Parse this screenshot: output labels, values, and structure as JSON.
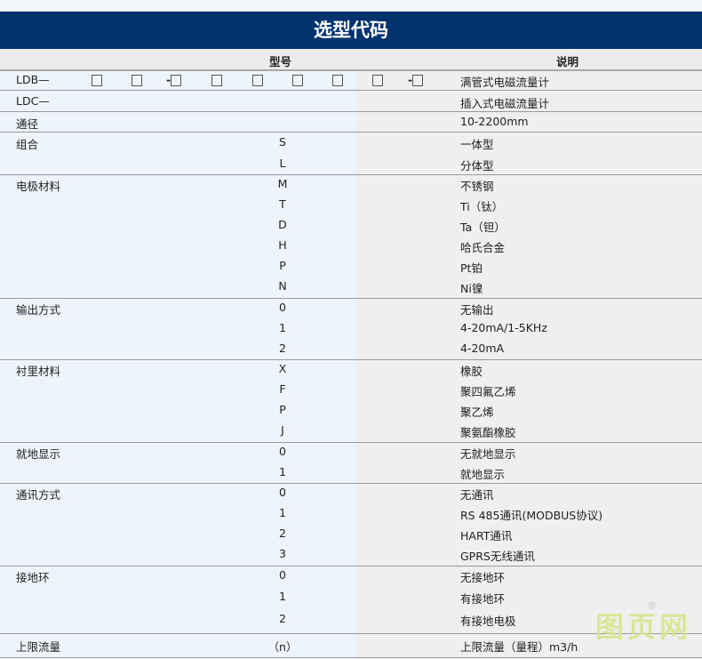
{
  "title": "选型代码",
  "header": {
    "model": "型号",
    "desc": "说明"
  },
  "ldb": {
    "label": "LDB—",
    "desc": "满管式电磁流量计"
  },
  "ldc": {
    "label": "LDC—",
    "desc": "插入式电磁流量计"
  },
  "diameter": {
    "label": "通径",
    "desc": "10-2200mm"
  },
  "groups": [
    {
      "label": "组合",
      "rows": [
        {
          "code": "S",
          "desc": "一体型"
        },
        {
          "code": "L",
          "desc": "分体型"
        }
      ]
    },
    {
      "label": "电极材料",
      "rows": [
        {
          "code": "M",
          "desc": "不锈钢"
        },
        {
          "code": "T",
          "desc": "Ti（钛）"
        },
        {
          "code": "D",
          "desc": "Ta（钽）"
        },
        {
          "code": "H",
          "desc": "哈氏合金"
        },
        {
          "code": "P",
          "desc": "Pt铂"
        },
        {
          "code": "N",
          "desc": "Ni镍"
        }
      ]
    },
    {
      "label": "输出方式",
      "rows": [
        {
          "code": "0",
          "desc": "无输出"
        },
        {
          "code": "1",
          "desc": "4-20mA/1-5KHz"
        },
        {
          "code": "2",
          "desc": "4-20mA"
        }
      ]
    },
    {
      "label": "衬里材料",
      "rows": [
        {
          "code": "X",
          "desc": "橡胶"
        },
        {
          "code": "F",
          "desc": "聚四氟乙烯"
        },
        {
          "code": "P",
          "desc": "聚乙烯"
        },
        {
          "code": "J",
          "desc": "聚氨酯橡胶"
        }
      ]
    },
    {
      "label": "就地显示",
      "rows": [
        {
          "code": "0",
          "desc": "无就地显示"
        },
        {
          "code": "1",
          "desc": "就地显示"
        }
      ]
    },
    {
      "label": "通讯方式",
      "rows": [
        {
          "code": "0",
          "desc": "无通讯"
        },
        {
          "code": "1",
          "desc": "RS 485通讯(MODBUS协议)"
        },
        {
          "code": "2",
          "desc": "HART通讯"
        },
        {
          "code": "3",
          "desc": "GPRS无线通讯"
        }
      ]
    },
    {
      "label": "接地环",
      "rows": [
        {
          "code": "0",
          "desc": "无接地环"
        },
        {
          "code": "1",
          "desc": "有接地环"
        },
        {
          "code": "2",
          "desc": "有接地电极"
        }
      ]
    },
    {
      "label": "上限流量",
      "rows": [
        {
          "code": "（n）",
          "desc": "上限流量（量程）m3/h"
        }
      ]
    }
  ],
  "watermark": "图页网"
}
